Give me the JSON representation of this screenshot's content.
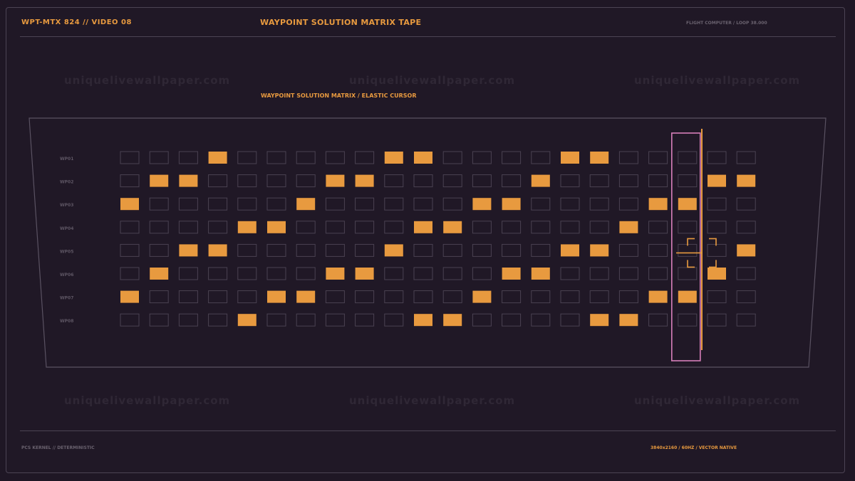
{
  "header": {
    "left": "WPT-MTX 824 // VIDEO 08",
    "title": "WAYPOINT SOLUTION MATRIX TAPE",
    "right": "FLIGHT COMPUTER / LOOP 38.000"
  },
  "subtitle": "WAYPOINT SOLUTION MATRIX / ELASTIC CURSOR",
  "footer": {
    "left": "PCS KERNEL // DETERMINISTIC",
    "right": "3840x2160 / 60HZ / VECTOR NATIVE"
  },
  "watermark": "uniquelivewallpaper.com",
  "colors": {
    "accent": "#e89a3f",
    "cursor_column": "#d77fba",
    "cell_outline": "#4a4252",
    "frame": "#4c4454",
    "label": "#5e5664"
  },
  "matrix": {
    "row_labels": [
      "WP01",
      "WP02",
      "WP03",
      "WP04",
      "WP05",
      "WP06",
      "WP07",
      "WP08"
    ],
    "column_count": 22,
    "filled": [
      [
        3,
        9,
        10,
        15,
        16
      ],
      [
        1,
        2,
        7,
        8,
        14,
        20,
        21
      ],
      [
        0,
        6,
        12,
        13,
        18,
        19
      ],
      [
        4,
        5,
        10,
        11,
        17
      ],
      [
        2,
        3,
        9,
        15,
        16,
        21
      ],
      [
        1,
        7,
        8,
        13,
        14,
        20
      ],
      [
        0,
        5,
        6,
        12,
        18,
        19
      ],
      [
        4,
        10,
        11,
        16,
        17
      ]
    ],
    "highlighted_column": 19,
    "cursor_row": 4
  }
}
